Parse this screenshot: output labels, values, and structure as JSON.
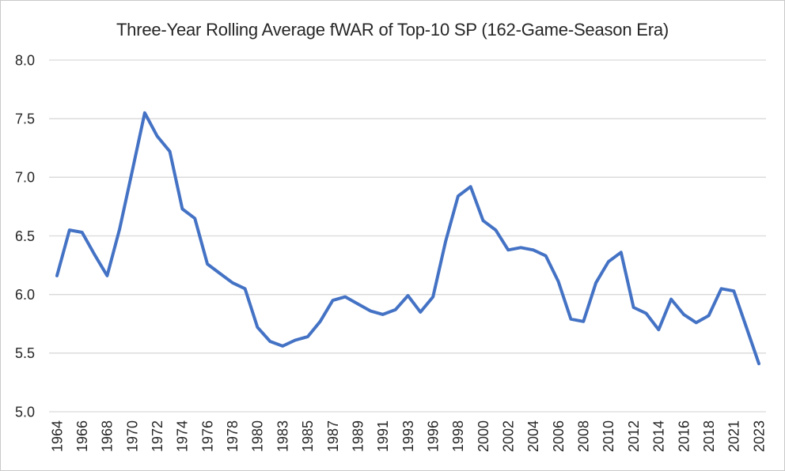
{
  "chart_data": {
    "type": "line",
    "title": "Three-Year Rolling Average fWAR of Top-10 SP (162-Game-Season Era)",
    "xlabel": "",
    "ylabel": "",
    "x": [
      1964,
      1965,
      1966,
      1967,
      1968,
      1969,
      1970,
      1971,
      1972,
      1973,
      1974,
      1975,
      1976,
      1977,
      1978,
      1979,
      1980,
      1982,
      1983,
      1984,
      1985,
      1986,
      1987,
      1988,
      1989,
      1990,
      1991,
      1992,
      1993,
      1995,
      1996,
      1997,
      1998,
      1999,
      2000,
      2001,
      2002,
      2003,
      2004,
      2005,
      2006,
      2007,
      2008,
      2009,
      2010,
      2011,
      2012,
      2013,
      2014,
      2015,
      2016,
      2017,
      2018,
      2019,
      2021,
      2022,
      2023
    ],
    "values": [
      6.16,
      6.55,
      6.53,
      6.34,
      6.16,
      6.56,
      7.05,
      7.55,
      7.35,
      7.22,
      6.73,
      6.65,
      6.26,
      6.18,
      6.1,
      6.05,
      5.72,
      5.6,
      5.56,
      5.61,
      5.64,
      5.77,
      5.95,
      5.98,
      5.92,
      5.86,
      5.83,
      5.87,
      5.99,
      5.85,
      5.98,
      6.45,
      6.84,
      6.92,
      6.63,
      6.55,
      6.38,
      6.4,
      6.38,
      6.33,
      6.11,
      5.79,
      5.77,
      6.1,
      6.28,
      6.36,
      5.89,
      5.84,
      5.7,
      5.96,
      5.83,
      5.76,
      5.82,
      6.05,
      6.03,
      5.72,
      5.41
    ],
    "x_tick_labels": [
      "1964",
      "1966",
      "1968",
      "1970",
      "1972",
      "1974",
      "1976",
      "1978",
      "1980",
      "1983",
      "1985",
      "1987",
      "1989",
      "1991",
      "1993",
      "1996",
      "1998",
      "2000",
      "2002",
      "2004",
      "2006",
      "2008",
      "2010",
      "2012",
      "2014",
      "2016",
      "2018",
      "2021",
      "2023"
    ],
    "x_tick_every": 2,
    "y_tick_labels": [
      "8.0",
      "7.5",
      "7.0",
      "6.5",
      "6.0",
      "5.5",
      "5.0"
    ],
    "y_ticks": [
      8.0,
      7.5,
      7.0,
      6.5,
      6.0,
      5.5,
      5.0
    ],
    "ylim": [
      5.0,
      8.0
    ],
    "grid": true,
    "legend": false,
    "colors": {
      "line": "#4472C4",
      "gridline": "#D9D9D9",
      "tick_text": "#262626",
      "title_text": "#262626",
      "background": "#FFFFFF",
      "frame_border": "#C9C9C9"
    }
  }
}
